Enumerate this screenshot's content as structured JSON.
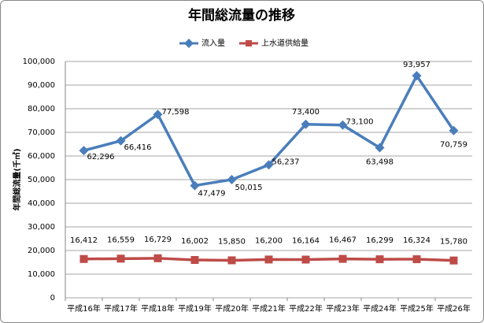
{
  "chart_data": {
    "type": "line",
    "title": "年間総流量の推移",
    "y_label": "年間総流量(千㎥)",
    "categories": [
      "平成16年",
      "平成17年",
      "平成18年",
      "平成19年",
      "平成20年",
      "平成21年",
      "平成22年",
      "平成23年",
      "平成24年",
      "平成25年",
      "平成26年"
    ],
    "series": [
      {
        "name": "流入量",
        "color": "#4a7ebb",
        "marker": "diamond",
        "values": [
          62296,
          66416,
          77598,
          47479,
          50015,
          56237,
          73400,
          73100,
          63498,
          93957,
          70759
        ],
        "value_labels": [
          "62,296",
          "66,416",
          "77,598",
          "47,479",
          "50,015",
          "56,237",
          "73,400",
          "73,100",
          "63,498",
          "93,957",
          "70,759"
        ]
      },
      {
        "name": "上水道供給量",
        "color": "#be4b48",
        "marker": "square",
        "values": [
          16412,
          16559,
          16729,
          16002,
          15850,
          16200,
          16164,
          16467,
          16299,
          16324,
          15780
        ],
        "value_labels": [
          "16,412",
          "16,559",
          "16,729",
          "16,002",
          "15,850",
          "16,200",
          "16,164",
          "16,467",
          "16,299",
          "16,324",
          "15,780"
        ]
      }
    ],
    "ylim": [
      0,
      100000
    ],
    "yticks": [
      0,
      {
        "value": 10000,
        "label": "10,000"
      },
      {
        "value": 20000,
        "label": "20,000"
      },
      {
        "value": 30000,
        "label": "30,000"
      },
      {
        "value": 40000,
        "label": "40,000"
      },
      {
        "value": 50000,
        "label": "50,000"
      },
      {
        "value": 60000,
        "label": "60,000"
      },
      {
        "value": 70000,
        "label": "70,000"
      },
      {
        "value": 80000,
        "label": "80,000"
      },
      {
        "value": 90000,
        "label": "90,000"
      },
      {
        "value": 100000,
        "label": "100,000"
      }
    ],
    "grid": true
  }
}
